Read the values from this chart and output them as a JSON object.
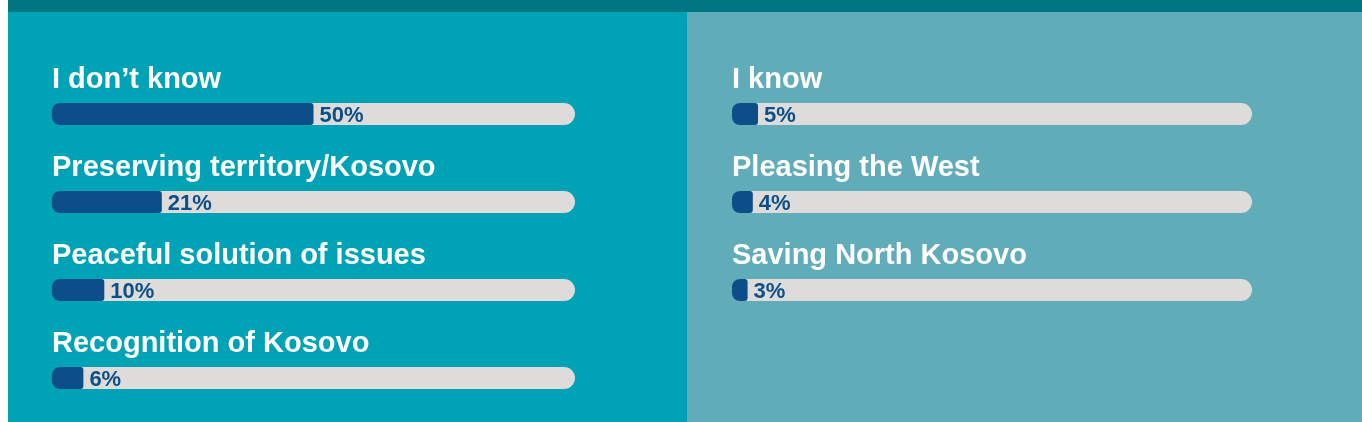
{
  "chart_data": [
    {
      "type": "bar",
      "orientation": "horizontal",
      "categories": [
        "I don’t know",
        "Preserving territory/Kosovo",
        "Peaceful solution of issues",
        "Recognition of Kosovo"
      ],
      "values": [
        50,
        21,
        10,
        6
      ],
      "value_labels": [
        "50%",
        "21%",
        "10%",
        "6%"
      ],
      "color": "#0c4f88",
      "xlim": [
        0,
        100
      ],
      "tick_labels": "y"
    },
    {
      "type": "bar",
      "orientation": "horizontal",
      "categories": [
        "I know",
        "Pleasing the West",
        "Saving North Kosovo"
      ],
      "values": [
        5,
        4,
        3
      ],
      "value_labels": [
        "5%",
        "4%",
        "3%"
      ],
      "color": "#0c4f88",
      "xlim": [
        0,
        100
      ],
      "tick_labels": "y"
    }
  ]
}
